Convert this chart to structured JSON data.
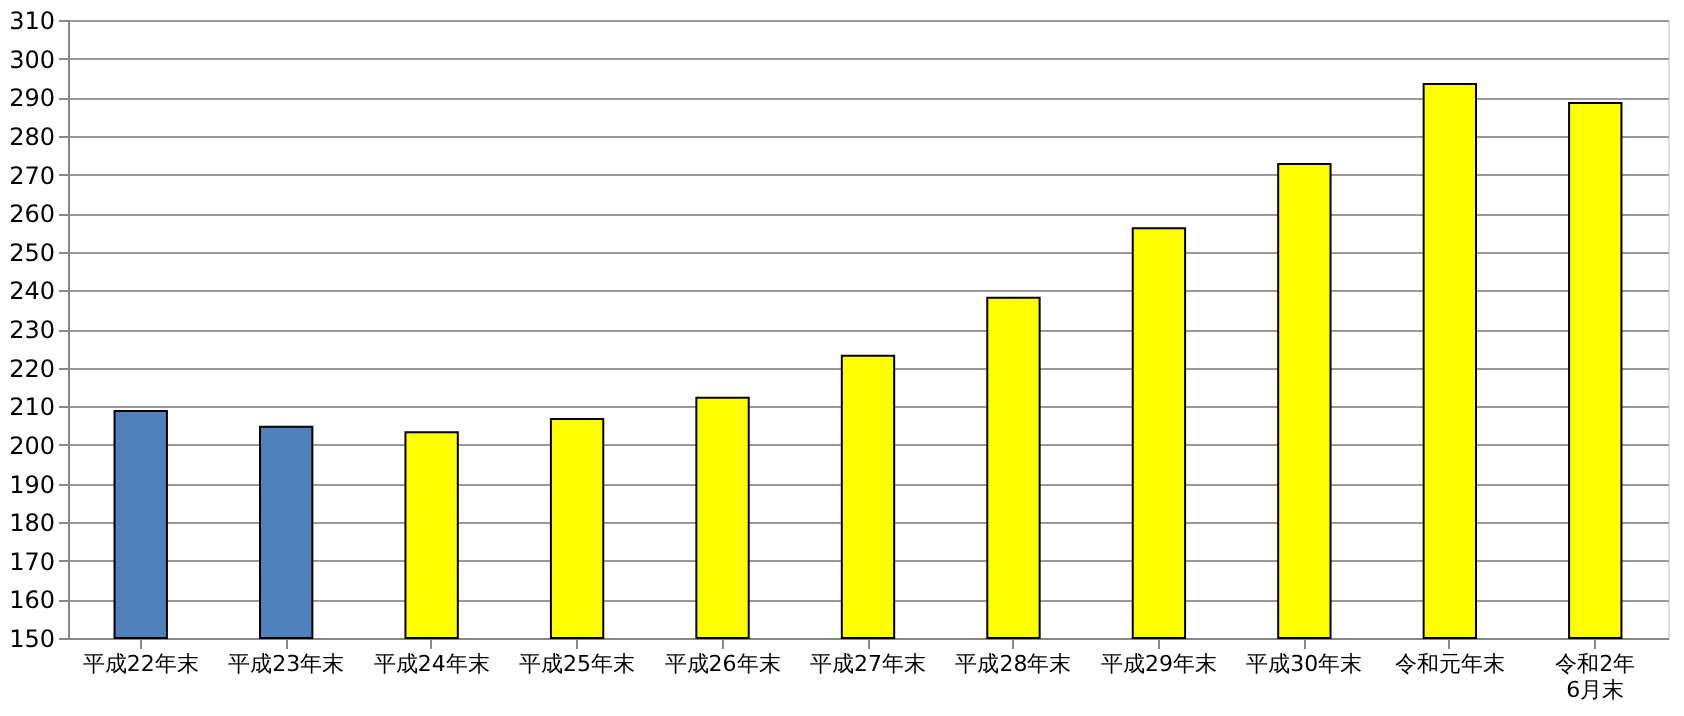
{
  "chart_data": {
    "type": "bar",
    "categories": [
      "平成22年末",
      "平成23年末",
      "平成24年末",
      "平成25年末",
      "平成26年末",
      "平成27年末",
      "平成28年末",
      "平成29年末",
      "平成30年末",
      "令和元年末",
      "令和2年\n6月末"
    ],
    "values": [
      208.8,
      204.7,
      203.3,
      206.7,
      212.2,
      223.1,
      238.1,
      256.1,
      272.7,
      293.4,
      288.5
    ],
    "colors": [
      "#4f81bd",
      "#4f81bd",
      "#ffff00",
      "#ffff00",
      "#ffff00",
      "#ffff00",
      "#ffff00",
      "#ffff00",
      "#ffff00",
      "#ffff00",
      "#ffff00"
    ],
    "ylim": [
      150,
      310
    ],
    "yticks": [
      150,
      160,
      170,
      180,
      190,
      200,
      210,
      220,
      230,
      240,
      250,
      260,
      270,
      280,
      290,
      300,
      310
    ],
    "grid": "y"
  }
}
